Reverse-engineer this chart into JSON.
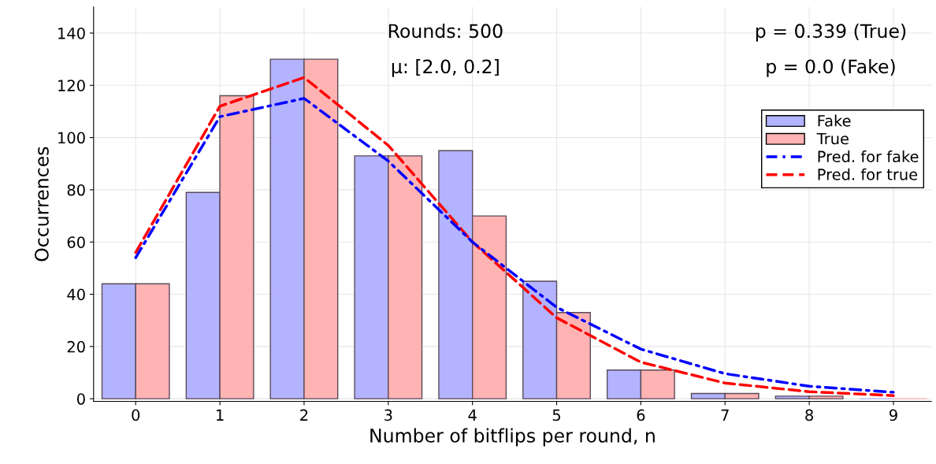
{
  "chart_data": {
    "type": "bar",
    "xlabel": "Number of bitflips per round, n",
    "ylabel": "Occurrences",
    "categories": [
      "0",
      "1",
      "2",
      "3",
      "4",
      "5",
      "6",
      "7",
      "8",
      "9"
    ],
    "series": [
      {
        "name": "Fake",
        "color": "#b3b3ff",
        "values": [
          44,
          79,
          130,
          93,
          95,
          45,
          11,
          2,
          1,
          0
        ]
      },
      {
        "name": "True",
        "color": "#ffb3b3",
        "values": [
          44,
          116,
          130,
          93,
          70,
          33,
          11,
          2,
          1,
          0
        ]
      },
      {
        "name": "Pred. for fake",
        "type": "line",
        "line_style": "dashdot",
        "color": "#0000ff",
        "values": [
          54,
          108,
          115,
          91,
          60,
          35,
          19,
          9.6,
          4.8,
          2.5
        ]
      },
      {
        "name": "Pred. for true",
        "type": "line",
        "line_style": "dashed",
        "color": "#ff0000",
        "values": [
          56,
          112,
          123,
          97,
          60,
          31,
          14,
          6,
          2.7,
          1.2
        ]
      }
    ],
    "ylim": [
      -1,
      150
    ],
    "yticks": [
      0,
      20,
      40,
      60,
      80,
      100,
      120,
      140
    ],
    "grid": true,
    "legend": "right",
    "annotations": [
      "Rounds: 500",
      "μ: [2.0, 0.2]",
      "p = 0.339 (True)",
      "p = 0.0 (Fake)"
    ]
  }
}
